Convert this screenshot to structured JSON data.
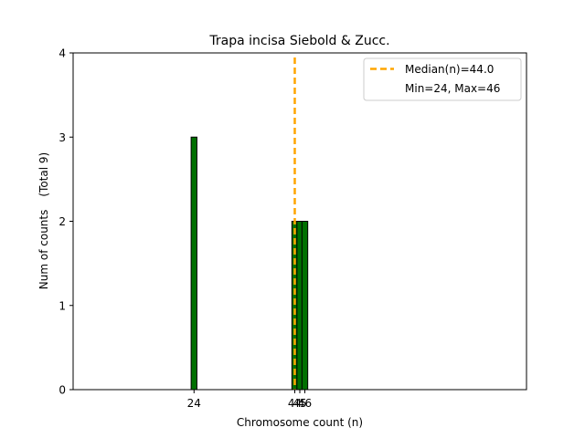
{
  "chart_data": {
    "type": "bar",
    "title": "Trapa incisa Siebold & Zucc.",
    "xlabel": "Chromosome count (n)",
    "ylabel": "Num of counts",
    "ylabel_extra": "(Total 9)",
    "bars": [
      {
        "x": 24,
        "value": 3
      },
      {
        "x": 44,
        "value": 2
      },
      {
        "x": 45,
        "value": 2
      },
      {
        "x": 46,
        "value": 2
      }
    ],
    "xticks": [
      {
        "value": 24,
        "label": "24"
      },
      {
        "value": 44,
        "label": "44"
      },
      {
        "value": 45,
        "label": "45"
      },
      {
        "value": 46,
        "label": "46"
      }
    ],
    "yticks": [
      0,
      1,
      2,
      3,
      4
    ],
    "xlim": [
      0,
      90
    ],
    "ylim": [
      0,
      4
    ],
    "bar_color": "#007000",
    "bar_edge_color": "#000000",
    "median": {
      "value": 44.0,
      "label": "Median(n)=44.0",
      "color": "#FFA500"
    },
    "legend": {
      "placement": "top-right",
      "entries": [
        "Median(n)=44.0",
        "Min=24, Max=46"
      ]
    },
    "grid": false
  }
}
